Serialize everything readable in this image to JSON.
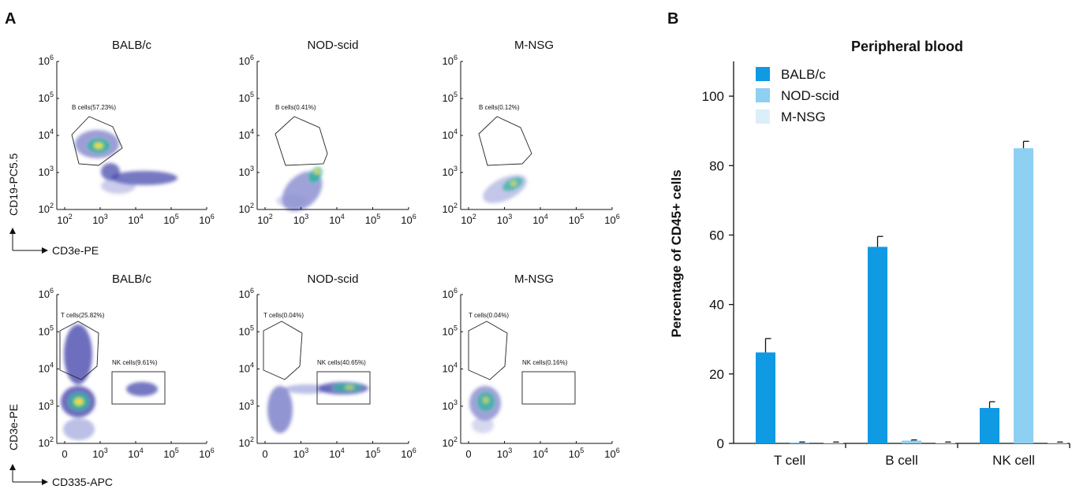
{
  "panel_a": {
    "letter": "A",
    "row1": {
      "y_axis_label": "CD19-PC5.5",
      "x_axis_label": "CD3e-PE",
      "x_ticks": [
        "10",
        "10",
        "10",
        "10",
        "10"
      ],
      "x_tick_exponents": [
        "2",
        "3",
        "4",
        "5",
        "6"
      ],
      "y_ticks": [
        "10",
        "10",
        "10",
        "10",
        "10"
      ],
      "y_tick_exponents": [
        "2",
        "3",
        "4",
        "5",
        "6"
      ],
      "plots": [
        {
          "title": "BALB/c",
          "gates": [
            {
              "label": "B cells(57.23%)"
            }
          ]
        },
        {
          "title": "NOD-scid",
          "gates": [
            {
              "label": "B cells(0.41%)"
            }
          ]
        },
        {
          "title": "M-NSG",
          "gates": [
            {
              "label": "B cells(0.12%)"
            }
          ]
        }
      ]
    },
    "row2": {
      "y_axis_label": "CD3e-PE",
      "x_axis_label": "CD335-APC",
      "x_ticks": [
        "0",
        "10",
        "10",
        "10",
        "10"
      ],
      "x_tick_exponents": [
        "",
        "3",
        "4",
        "5",
        "6"
      ],
      "y_ticks": [
        "10",
        "10",
        "10",
        "10",
        "10"
      ],
      "y_tick_exponents": [
        "2",
        "3",
        "4",
        "5",
        "6"
      ],
      "plots": [
        {
          "title": "BALB/c",
          "gates": [
            {
              "label": "T cells(25.82%)"
            },
            {
              "label": "NK cells(9.61%)"
            }
          ]
        },
        {
          "title": "NOD-scid",
          "gates": [
            {
              "label": "T cells(0.04%)"
            },
            {
              "label": "NK cells(40.65%)"
            }
          ]
        },
        {
          "title": "M-NSG",
          "gates": [
            {
              "label": "T cells(0.04%)"
            },
            {
              "label": "NK cells(0.16%)"
            }
          ]
        }
      ]
    }
  },
  "panel_b": {
    "letter": "B"
  },
  "chart_data": {
    "type": "bar",
    "title": "Peripheral blood",
    "xlabel": "",
    "ylabel": "Percentage of CD45+ cells",
    "ylim": [
      0,
      110
    ],
    "yticks": [
      0,
      20,
      40,
      60,
      80,
      100
    ],
    "categories": [
      "T cell",
      "B cell",
      "NK cell"
    ],
    "legend_position": "top-left",
    "series": [
      {
        "name": "BALB/c",
        "color": "#0f9ae3",
        "values": [
          26.2,
          56.6,
          10.2
        ],
        "errors": [
          4.0,
          3.0,
          1.8
        ]
      },
      {
        "name": "NOD-scid",
        "color": "#8dd0f2",
        "values": [
          0.3,
          0.8,
          85.0
        ],
        "errors": [
          0.1,
          0.2,
          2.0
        ]
      },
      {
        "name": "M-NSG",
        "color": "#dbeffa",
        "values": [
          0.3,
          0.3,
          0.3
        ],
        "errors": [
          0.1,
          0.1,
          0.1
        ]
      }
    ]
  }
}
